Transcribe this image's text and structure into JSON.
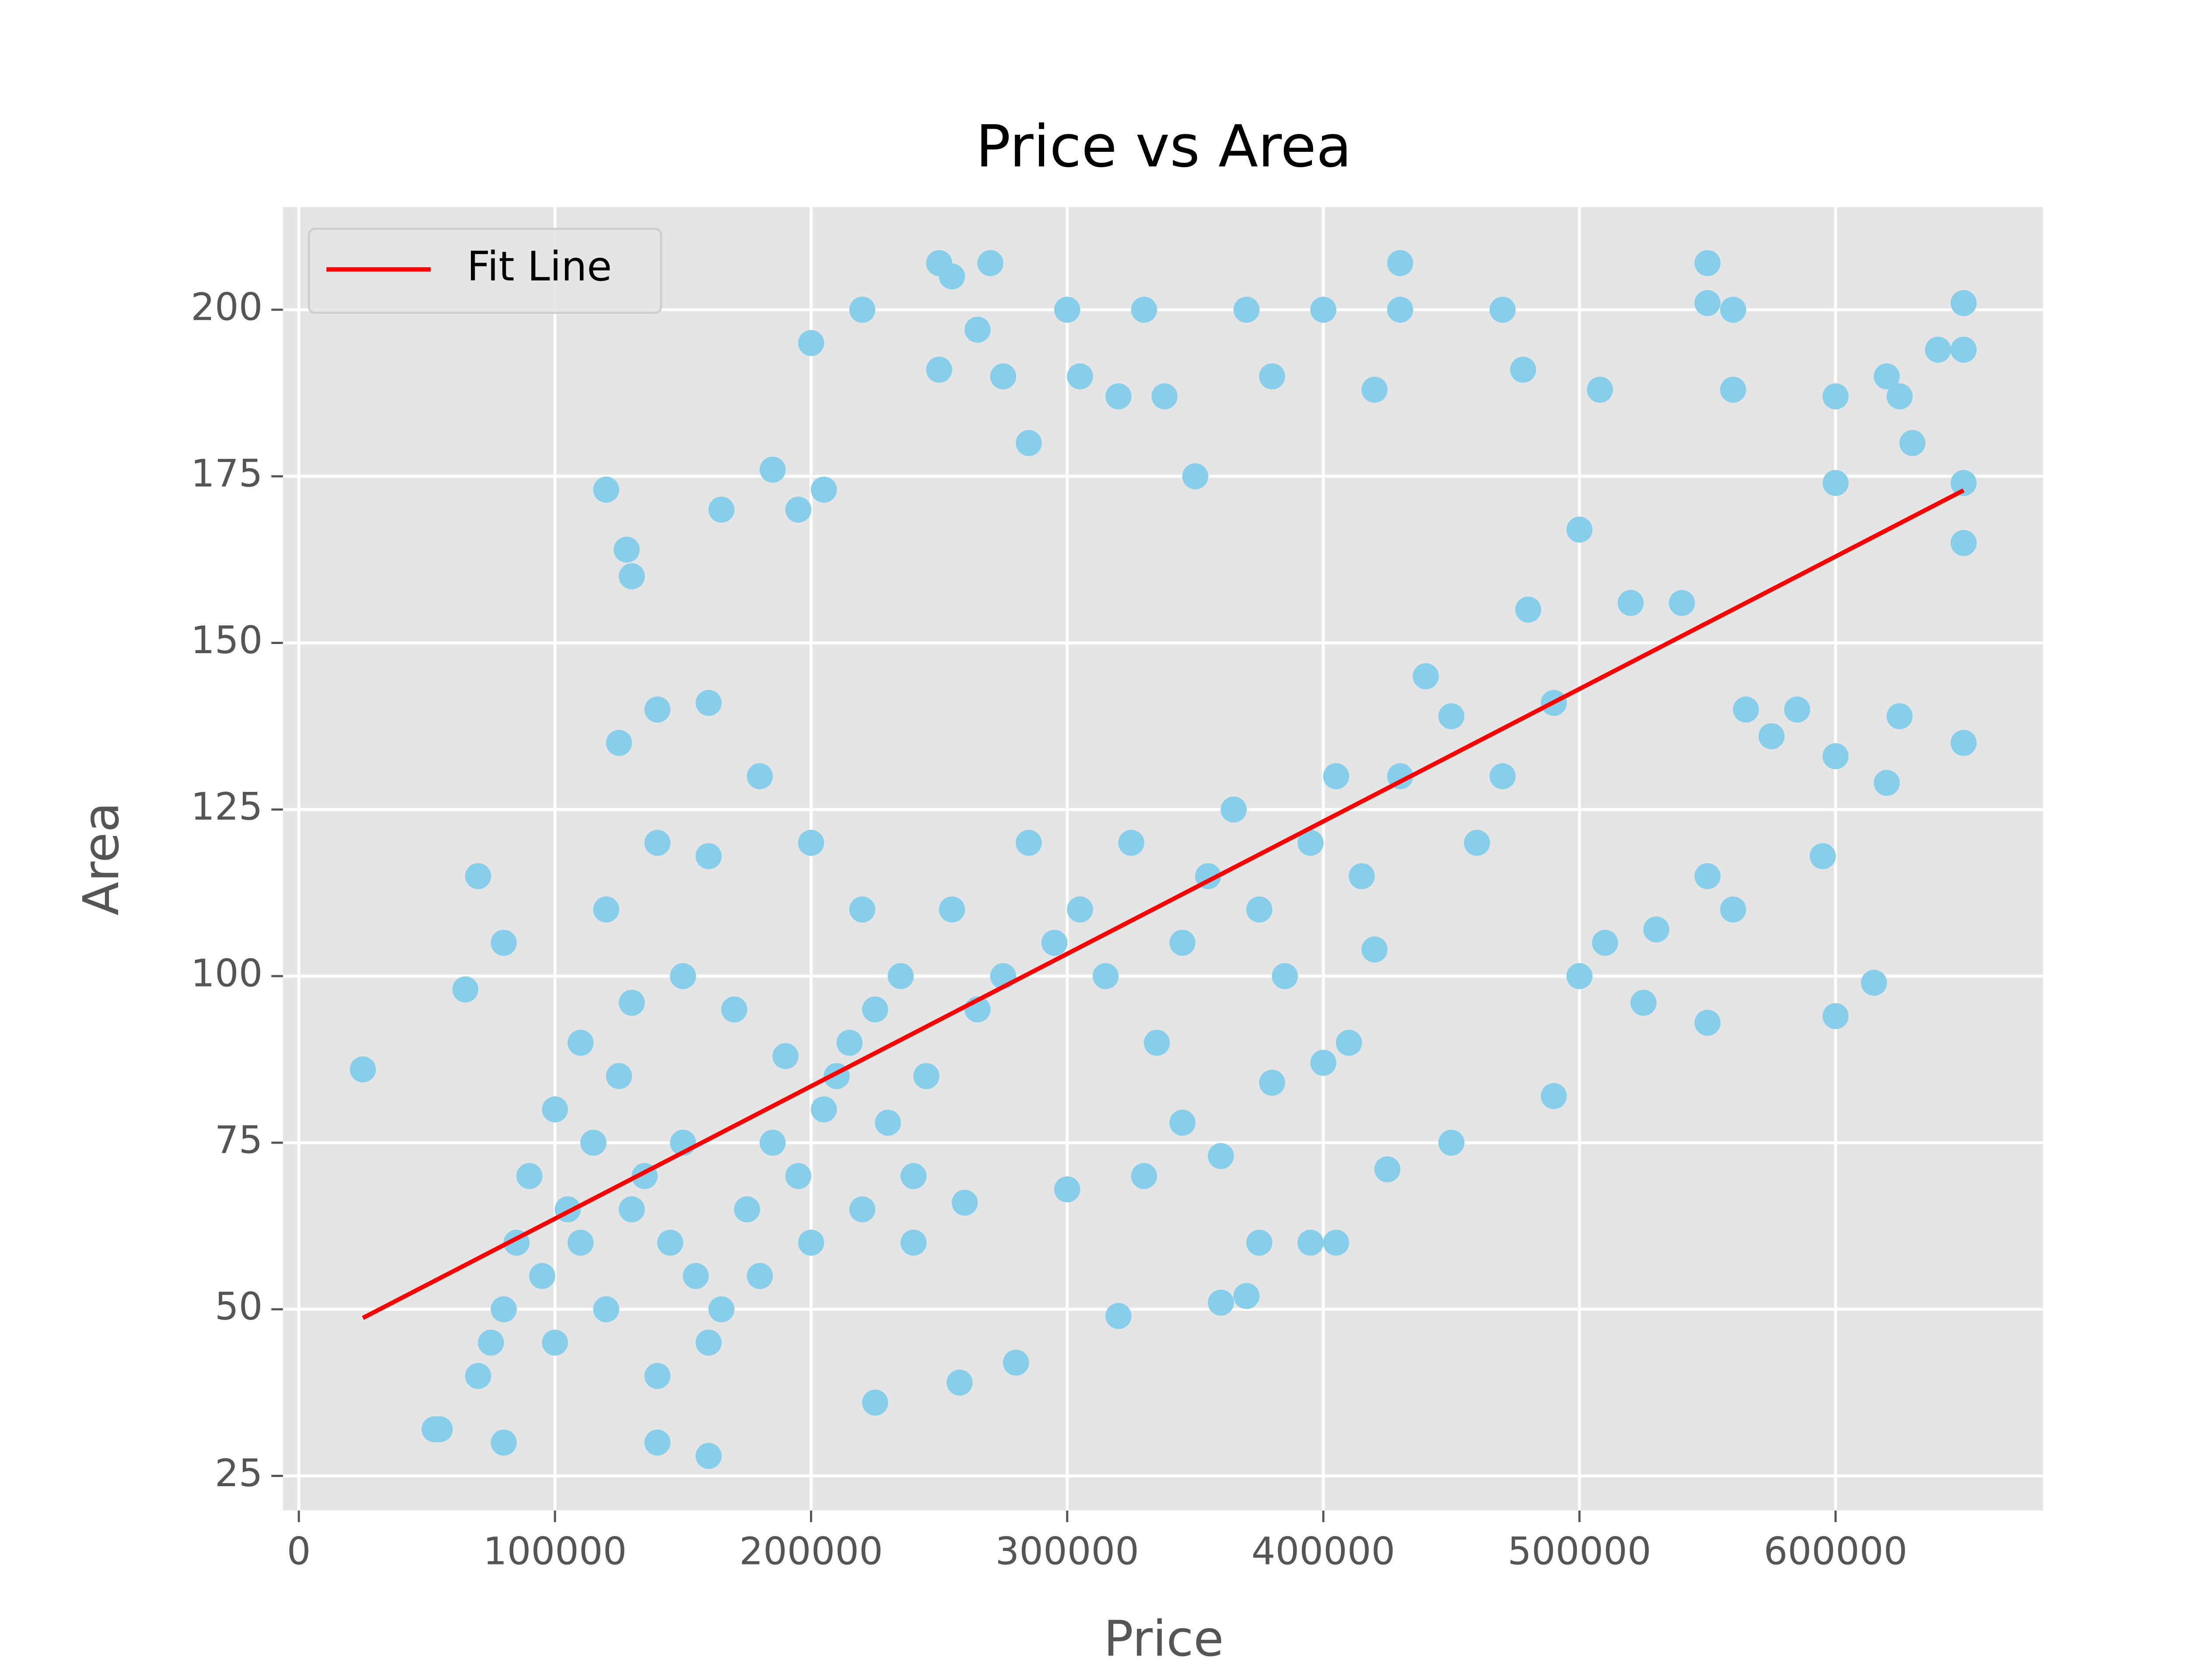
{
  "chart_data": {
    "type": "scatter",
    "title": "Price vs Area",
    "x_label": "Price",
    "y_label": "Area",
    "xlim": [
      -6200,
      681000
    ],
    "ylim": [
      19.8,
      215.4
    ],
    "xticks": [
      0,
      100000,
      200000,
      300000,
      400000,
      500000,
      600000
    ],
    "yticks": [
      25,
      50,
      75,
      100,
      125,
      150,
      175,
      200
    ],
    "grid": true,
    "legend": "upper left",
    "series": [
      {
        "type": "scatter",
        "color": "#87ceeb",
        "x": [
          25000,
          53000,
          65000,
          70000,
          80000,
          120000,
          125000,
          128000,
          130000,
          140000,
          160000,
          165000,
          160000,
          185000,
          195000,
          200000,
          205000,
          220000,
          250000,
          255000,
          250000,
          265000,
          270000,
          275000,
          285000,
          300000,
          305000,
          330000,
          320000,
          338000,
          350000,
          370000,
          380000,
          400000,
          420000,
          430000,
          430000,
          470000,
          478000,
          508000,
          550000,
          550000,
          560000,
          560000,
          620000,
          625000,
          640000,
          650000,
          650000,
          650000,
          650000,
          650000,
          630000,
          600000,
          600000,
          600000,
          595000,
          600000,
          615000,
          620000,
          625000,
          585000,
          575000,
          565000,
          560000,
          550000,
          550000,
          525000,
          530000,
          510000,
          500000,
          490000,
          450000,
          425000,
          405000,
          395000,
          375000,
          370000,
          360000,
          320000,
          280000,
          258000,
          225000,
          140000,
          80000,
          55000,
          500000,
          520000,
          540000,
          490000,
          470000,
          450000,
          430000,
          420000,
          410000,
          400000,
          380000,
          360000,
          345000,
          330000,
          300000,
          260000,
          240000,
          230000,
          210000,
          190000,
          170000,
          150000,
          130000,
          110000,
          100000,
          90000,
          85000,
          80000,
          75000,
          70000,
          95000,
          105000,
          115000,
          125000,
          135000,
          145000,
          155000,
          165000,
          175000,
          185000,
          195000,
          205000,
          215000,
          225000,
          235000,
          245000,
          255000,
          265000,
          275000,
          285000,
          295000,
          305000,
          315000,
          325000,
          335000,
          345000,
          355000,
          365000,
          375000,
          385000,
          395000,
          405000,
          415000,
          440000,
          460000,
          480000,
          120000,
          140000,
          160000,
          180000,
          200000,
          220000,
          100000,
          120000,
          140000,
          160000,
          180000,
          200000,
          220000,
          240000,
          150000,
          130000,
          110000
        ],
        "values": [
          86,
          32,
          98,
          115,
          105,
          173,
          135,
          164,
          160,
          140,
          141,
          170,
          28,
          176,
          170,
          195,
          173,
          200,
          207,
          205,
          191,
          197,
          207,
          190,
          180,
          200,
          190,
          200,
          187,
          187,
          175,
          200,
          190,
          200,
          188,
          207,
          200,
          200,
          191,
          188,
          207,
          201,
          200,
          188,
          190,
          187,
          194,
          201,
          194,
          174,
          165,
          135,
          180,
          187,
          174,
          133,
          118,
          94,
          99,
          129,
          139,
          140,
          136,
          140,
          110,
          93,
          115,
          96,
          107,
          105,
          100,
          82,
          75,
          71,
          60,
          60,
          60,
          52,
          51,
          49,
          42,
          39,
          36,
          30,
          30,
          32,
          167,
          156,
          156,
          141,
          130,
          139,
          130,
          104,
          90,
          87,
          84,
          73,
          78,
          70,
          68,
          66,
          60,
          78,
          85,
          88,
          95,
          100,
          96,
          90,
          80,
          70,
          60,
          50,
          45,
          40,
          55,
          65,
          75,
          85,
          70,
          60,
          55,
          50,
          65,
          75,
          70,
          80,
          90,
          95,
          100,
          85,
          110,
          95,
          100,
          120,
          105,
          110,
          100,
          120,
          90,
          105,
          115,
          125,
          110,
          100,
          120,
          130,
          115,
          145,
          120,
          155,
          110,
          120,
          118,
          130,
          120,
          110,
          45,
          50,
          40,
          45,
          55,
          60,
          65,
          70,
          75,
          65,
          60
        ]
      },
      {
        "type": "line",
        "name": "Fit Line",
        "color": "#ff0000",
        "x": [
          25000,
          650000
        ],
        "values": [
          48.7,
          172.9
        ]
      }
    ]
  }
}
